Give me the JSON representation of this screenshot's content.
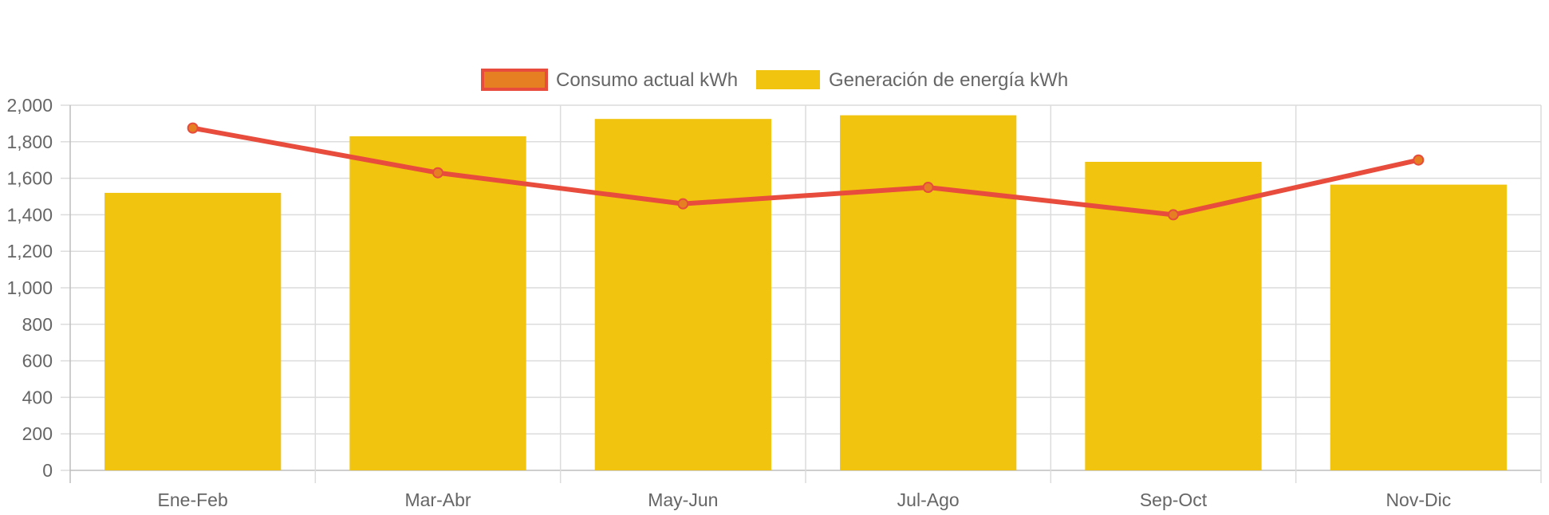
{
  "chart_data": {
    "type": "bar",
    "title": "",
    "xlabel": "",
    "ylabel": "",
    "categories": [
      "Ene-Feb",
      "Mar-Abr",
      "May-Jun",
      "Jul-Ago",
      "Sep-Oct",
      "Nov-Dic"
    ],
    "ylim": [
      0,
      2000
    ],
    "y_ticks": [
      "0",
      "200",
      "400",
      "600",
      "800",
      "1,000",
      "1,200",
      "1,400",
      "1,600",
      "1,800",
      "2,000"
    ],
    "grid": true,
    "legend_position": "top-center",
    "series": [
      {
        "name": "Consumo actual kWh",
        "type": "line",
        "color": "#e74c3c",
        "point_color": "#e67e22",
        "values": [
          1875,
          1630,
          1460,
          1550,
          1400,
          1700
        ]
      },
      {
        "name": "Generación de energía kWh",
        "type": "bar",
        "color": "#f1c40f",
        "values": [
          1520,
          1830,
          1925,
          1945,
          1690,
          1565
        ]
      }
    ]
  }
}
